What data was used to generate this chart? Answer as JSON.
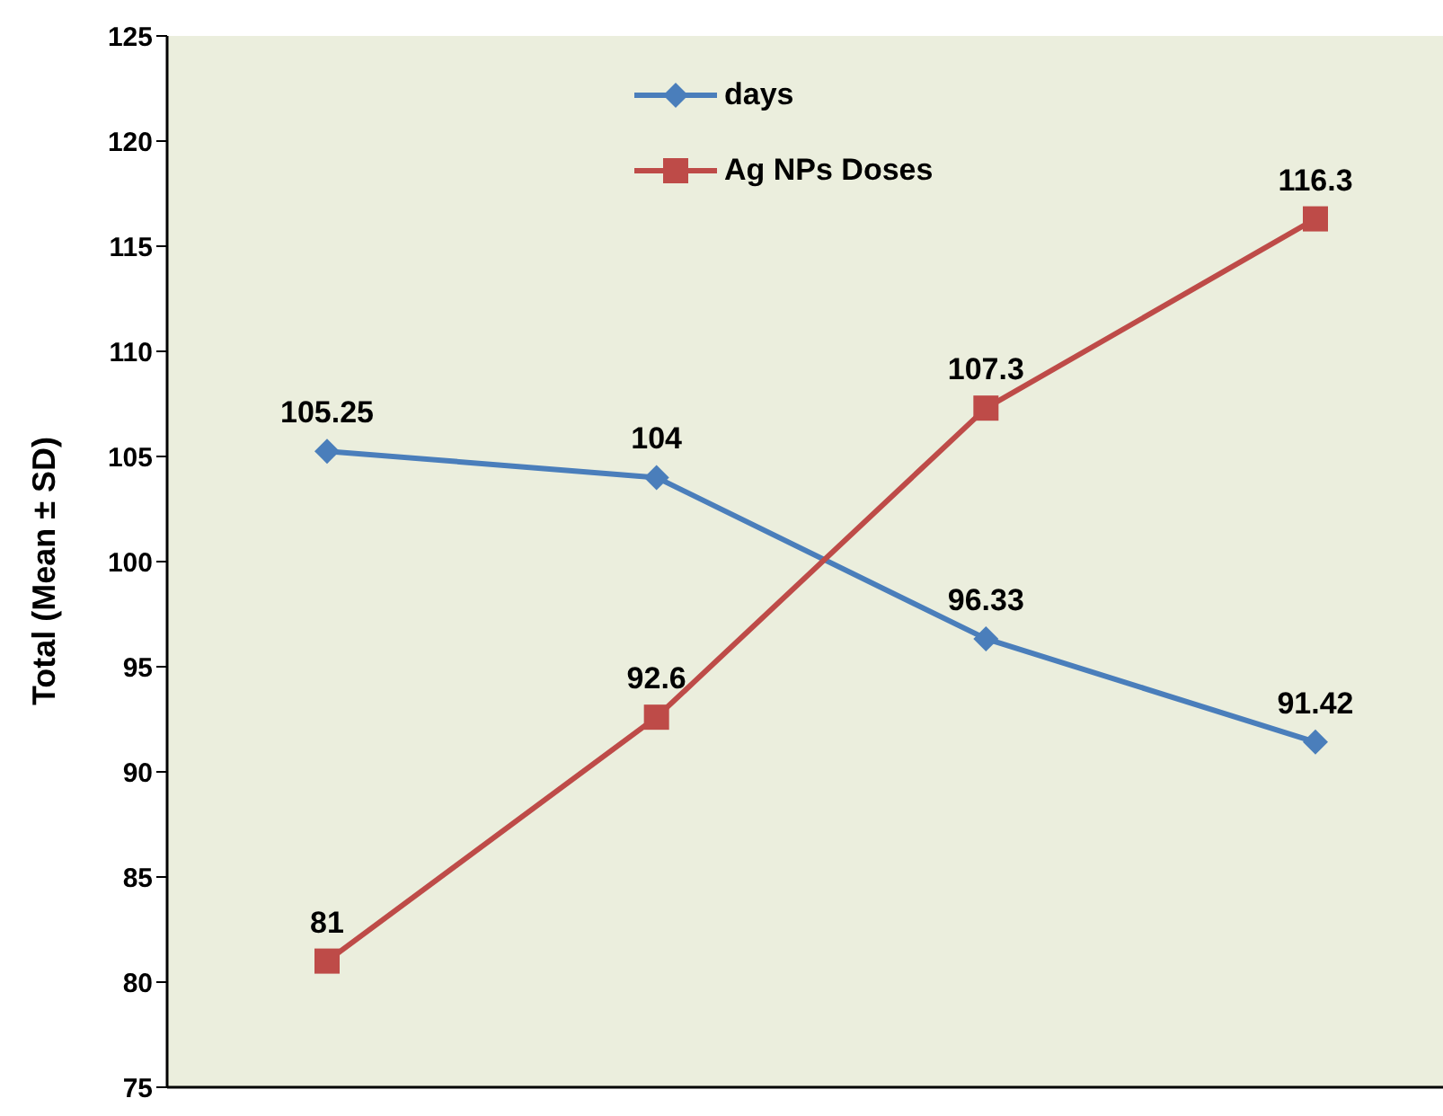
{
  "chart_data": {
    "type": "line",
    "ylabel": "Total (Mean ± SD)",
    "categories": [
      null,
      null,
      null,
      null
    ],
    "series": [
      {
        "name": "days",
        "color": "#4a7ebb",
        "marker": "diamond",
        "values": [
          105.25,
          104,
          96.33,
          91.42
        ]
      },
      {
        "name": "Ag NPs Doses",
        "color": "#be4b48",
        "marker": "square",
        "values": [
          81,
          92.6,
          107.3,
          116.3
        ]
      }
    ],
    "ylim": [
      75,
      125
    ],
    "yticks": [
      75,
      80,
      85,
      90,
      95,
      100,
      105,
      110,
      115,
      120,
      125
    ],
    "grid": false,
    "legend": "top",
    "data_labels": true,
    "line_style": "solid"
  }
}
